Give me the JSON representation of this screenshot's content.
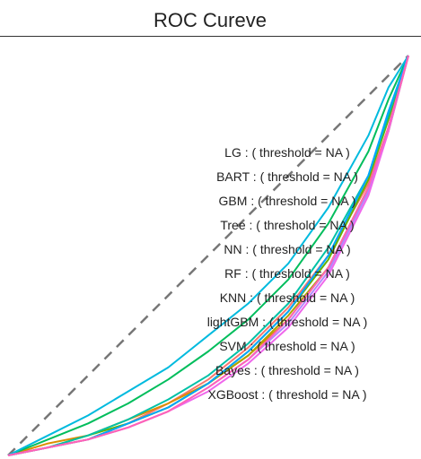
{
  "chart_data": {
    "type": "line",
    "title": "ROC Cureve",
    "xlabel": "",
    "ylabel": "",
    "xlim": [
      0,
      1
    ],
    "ylim": [
      0,
      1
    ],
    "reference_line": {
      "style": "dashed",
      "color": "#777777",
      "from": [
        0,
        0
      ],
      "to": [
        1,
        1
      ]
    },
    "series": [
      {
        "name": "LG : ( threshold = NA )",
        "color": "#F8766D",
        "x": [
          0,
          0.1,
          0.2,
          0.3,
          0.4,
          0.5,
          0.6,
          0.7,
          0.8,
          0.9,
          0.95,
          1
        ],
        "y": [
          0,
          0.02,
          0.04,
          0.08,
          0.13,
          0.19,
          0.27,
          0.37,
          0.5,
          0.68,
          0.82,
          1
        ]
      },
      {
        "name": "BART : ( threshold = NA )",
        "color": "#DB8E00",
        "x": [
          0,
          0.1,
          0.2,
          0.3,
          0.4,
          0.5,
          0.6,
          0.7,
          0.8,
          0.9,
          0.95,
          1
        ],
        "y": [
          0,
          0.03,
          0.05,
          0.09,
          0.13,
          0.18,
          0.25,
          0.34,
          0.47,
          0.67,
          0.82,
          1
        ]
      },
      {
        "name": "GBM : ( threshold = NA )",
        "color": "#AEA200",
        "x": [
          0,
          0.1,
          0.2,
          0.3,
          0.4,
          0.5,
          0.6,
          0.7,
          0.8,
          0.9,
          0.95,
          1
        ],
        "y": [
          0,
          0.02,
          0.04,
          0.08,
          0.12,
          0.18,
          0.25,
          0.35,
          0.47,
          0.66,
          0.81,
          1
        ]
      },
      {
        "name": "Tree : ( threshold = NA )",
        "color": "#64B200",
        "x": [
          0,
          0.1,
          0.2,
          0.3,
          0.4,
          0.5,
          0.6,
          0.7,
          0.8,
          0.9,
          0.95,
          1
        ],
        "y": [
          0,
          0.02,
          0.05,
          0.08,
          0.12,
          0.18,
          0.26,
          0.36,
          0.49,
          0.69,
          0.84,
          1
        ]
      },
      {
        "name": "NN : ( threshold = NA )",
        "color": "#00BD5C",
        "x": [
          0,
          0.1,
          0.2,
          0.3,
          0.4,
          0.5,
          0.6,
          0.7,
          0.8,
          0.9,
          0.95,
          1
        ],
        "y": [
          0,
          0.04,
          0.08,
          0.13,
          0.19,
          0.26,
          0.34,
          0.44,
          0.58,
          0.76,
          0.89,
          1
        ]
      },
      {
        "name": "RF : ( threshold = NA )",
        "color": "#00C1A7",
        "x": [
          0,
          0.1,
          0.2,
          0.3,
          0.4,
          0.5,
          0.6,
          0.7,
          0.8,
          0.9,
          0.95,
          1
        ],
        "y": [
          0,
          0.02,
          0.05,
          0.09,
          0.14,
          0.2,
          0.28,
          0.38,
          0.52,
          0.7,
          0.85,
          1
        ]
      },
      {
        "name": "KNN : ( threshold = NA )",
        "color": "#00BADE",
        "x": [
          0,
          0.1,
          0.2,
          0.3,
          0.4,
          0.5,
          0.6,
          0.7,
          0.8,
          0.9,
          0.95,
          1
        ],
        "y": [
          0,
          0.05,
          0.1,
          0.16,
          0.22,
          0.3,
          0.38,
          0.48,
          0.62,
          0.8,
          0.92,
          1
        ]
      },
      {
        "name": "lightGBM : ( threshold = NA )",
        "color": "#00A6FF",
        "x": [
          0,
          0.1,
          0.2,
          0.3,
          0.4,
          0.5,
          0.6,
          0.7,
          0.8,
          0.9,
          0.95,
          1
        ],
        "y": [
          0,
          0.02,
          0.04,
          0.08,
          0.12,
          0.18,
          0.26,
          0.36,
          0.5,
          0.7,
          0.86,
          1
        ]
      },
      {
        "name": "SVM : ( threshold = NA )",
        "color": "#B385FF",
        "x": [
          0,
          0.1,
          0.2,
          0.3,
          0.4,
          0.5,
          0.6,
          0.7,
          0.8,
          0.9,
          0.95,
          1
        ],
        "y": [
          0,
          0.02,
          0.04,
          0.07,
          0.11,
          0.17,
          0.24,
          0.33,
          0.46,
          0.66,
          0.82,
          1
        ]
      },
      {
        "name": "Bayes : ( threshold = NA )",
        "color": "#EF67EB",
        "x": [
          0,
          0.1,
          0.2,
          0.3,
          0.4,
          0.5,
          0.6,
          0.7,
          0.8,
          0.9,
          0.95,
          1
        ],
        "y": [
          0,
          0.02,
          0.04,
          0.07,
          0.11,
          0.16,
          0.23,
          0.32,
          0.45,
          0.65,
          0.81,
          1
        ]
      },
      {
        "name": "XGBoost : ( threshold = NA )",
        "color": "#FF63B6",
        "x": [
          0,
          0.1,
          0.2,
          0.3,
          0.4,
          0.5,
          0.6,
          0.7,
          0.8,
          0.9,
          0.95,
          1
        ],
        "y": [
          0,
          0.02,
          0.04,
          0.07,
          0.11,
          0.17,
          0.24,
          0.34,
          0.47,
          0.67,
          0.82,
          1
        ]
      }
    ],
    "grid": false,
    "legend": "center-right"
  }
}
